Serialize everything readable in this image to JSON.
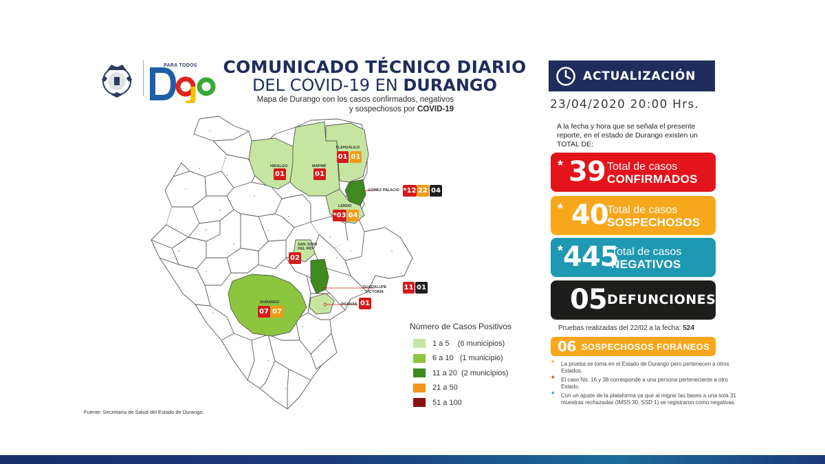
{
  "header": {
    "logo_small": "PARA TODOS",
    "logo_text": "Dgo",
    "title_line1": "COMUNICADO TÉCNICO DIARIO",
    "title_line2_prefix": "DEL COVID-19 EN ",
    "title_line2_bold": "DURANGO",
    "subtitle_line1": "Mapa de Durango con los casos confirmados, negativos",
    "subtitle_line2_prefix": "y sospechosos por ",
    "subtitle_line2_bold": "COVID-19"
  },
  "update": {
    "label": "ACTUALIZACIÓN",
    "date": "23/04/2020  20:00 Hrs.",
    "intro": "A la fecha y hora que se señala el presente reporte, en el estado de Durango existen un TOTAL DE:"
  },
  "stats": {
    "confirmed": {
      "asterisk": "*",
      "value": "39",
      "line1": "Total de casos",
      "line2": "CONFIRMADOS",
      "color": "#e3141b"
    },
    "suspect": {
      "asterisk": "*",
      "value": "40",
      "line1": "Total de casos",
      "line2": "SOSPECHOSOS",
      "color": "#f7a71b"
    },
    "negative": {
      "asterisk": "*",
      "value": "445",
      "line1": "Total de casos",
      "line2": "NEGATIVOS",
      "color": "#1e98b3"
    },
    "deaths": {
      "value": "05",
      "label": "DEFUNCIONES",
      "color": "#1d1d1b"
    }
  },
  "tests": {
    "prefix": "Pruebas realizadas del 22/02 a la fecha: ",
    "value": "524"
  },
  "foreign": {
    "value": "06",
    "label": "SOSPECHOSOS FORÁNEOS"
  },
  "notes": [
    {
      "star": "*",
      "color": "#f7a71b",
      "text": "La prueba se toma en el Estado de Durango pero pertenecen a otros Estados."
    },
    {
      "star": "*",
      "color": "#e3141b",
      "text": "El caso No. 16 y 38 corresponde a una persona perteneciente a otro Estado."
    },
    {
      "star": "*",
      "color": "#1e98b3",
      "text": "Con un ajuste de la plataforma ya que al migrar las bases a una sola 31 muestras rechazadas (IMSS 30, SSD 1) se registraron como negativas."
    }
  ],
  "map": {
    "places": {
      "hidalgo": "HIDALGO",
      "mapimi": "MAPIMÍ",
      "tlahualilo": "TLAHUALILO",
      "gomez_palacio": "GÓMEZ PALACIO",
      "lerdo": "LERDO",
      "san_juan": "SAN JUAN DEL RÍO",
      "guadalupe_victoria": "GUADALUPE VICTORIA",
      "poanas": "POANAS",
      "durango": "DURANGO"
    },
    "tags": {
      "hidalgo": [
        "01"
      ],
      "mapimi": [
        "01"
      ],
      "tlahualilo": [
        "01",
        "01"
      ],
      "gomez_palacio": [
        "*12",
        "22",
        "04"
      ],
      "lerdo": [
        "*03",
        "04"
      ],
      "san_juan": [
        "02"
      ],
      "guadalupe_victoria": [
        "11",
        "01"
      ],
      "poanas": [
        "01"
      ],
      "durango": [
        "07",
        "07"
      ]
    }
  },
  "legend": {
    "title": "Número de Casos Positivos",
    "items": [
      {
        "label": "1 a 5    (6 municipios)",
        "color": "#c5e6a1"
      },
      {
        "label": "6 a 10   (1 municipio)",
        "color": "#8cc63f"
      },
      {
        "label": "11 a 20  (2 municipios)",
        "color": "#3f8a1f"
      },
      {
        "label": "21 a 50",
        "color": "#f7941d"
      },
      {
        "label": "51 a 100",
        "color": "#8b0f0f"
      }
    ]
  },
  "source": "Fuente: Secretaría de Salud del Estado de Durango."
}
